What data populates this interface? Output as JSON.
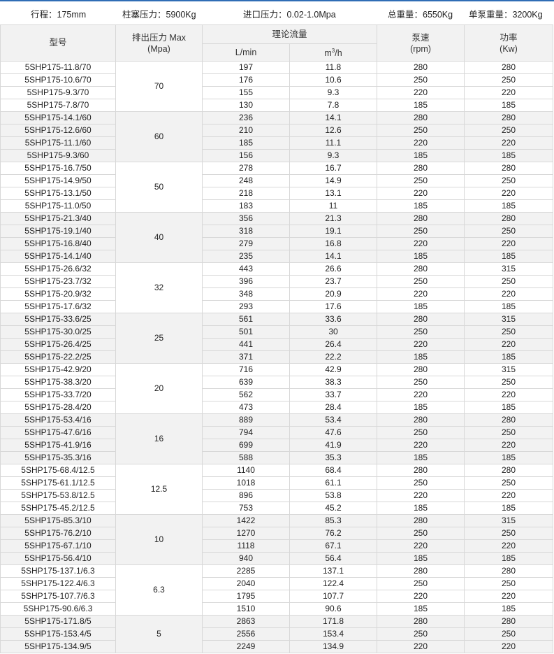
{
  "info": {
    "stroke": "行程：175mm",
    "plunger_force": "柱塞压力：5900Kg",
    "inlet_pressure": "进口压力：0.02-1.0Mpa",
    "total_weight": "总重量：6550Kg",
    "pump_weight": "单泵重量：3200Kg"
  },
  "header": {
    "model": "型号",
    "pressure": "排出压力 Max",
    "pressure_unit": "(Mpa)",
    "flow": "理论流量",
    "lmin": "L/min",
    "m3h_m": "m",
    "m3h_sup": "3",
    "m3h_h": "/h",
    "speed": "泵速",
    "speed_unit": "(rpm)",
    "power": "功率",
    "power_unit": "(Kw)"
  },
  "groups": [
    {
      "pressure": "70",
      "rows": [
        [
          "5SHP175-11.8/70",
          "197",
          "11.8",
          "280",
          "280"
        ],
        [
          "5SHP175-10.6/70",
          "176",
          "10.6",
          "250",
          "250"
        ],
        [
          "5SHP175-9.3/70",
          "155",
          "9.3",
          "220",
          "220"
        ],
        [
          "5SHP175-7.8/70",
          "130",
          "7.8",
          "185",
          "185"
        ]
      ]
    },
    {
      "pressure": "60",
      "rows": [
        [
          "5SHP175-14.1/60",
          "236",
          "14.1",
          "280",
          "280"
        ],
        [
          "5SHP175-12.6/60",
          "210",
          "12.6",
          "250",
          "250"
        ],
        [
          "5SHP175-11.1/60",
          "185",
          "11.1",
          "220",
          "220"
        ],
        [
          "5SHP175-9.3/60",
          "156",
          "9.3",
          "185",
          "185"
        ]
      ]
    },
    {
      "pressure": "50",
      "rows": [
        [
          "5SHP175-16.7/50",
          "278",
          "16.7",
          "280",
          "280"
        ],
        [
          "5SHP175-14.9/50",
          "248",
          "14.9",
          "250",
          "250"
        ],
        [
          "5SHP175-13.1/50",
          "218",
          "13.1",
          "220",
          "220"
        ],
        [
          "5SHP175-11.0/50",
          "183",
          "11",
          "185",
          "185"
        ]
      ]
    },
    {
      "pressure": "40",
      "rows": [
        [
          "5SHP175-21.3/40",
          "356",
          "21.3",
          "280",
          "280"
        ],
        [
          "5SHP175-19.1/40",
          "318",
          "19.1",
          "250",
          "250"
        ],
        [
          "5SHP175-16.8/40",
          "279",
          "16.8",
          "220",
          "220"
        ],
        [
          "5SHP175-14.1/40",
          "235",
          "14.1",
          "185",
          "185"
        ]
      ]
    },
    {
      "pressure": "32",
      "rows": [
        [
          "5SHP175-26.6/32",
          "443",
          "26.6",
          "280",
          "315"
        ],
        [
          "5SHP175-23.7/32",
          "396",
          "23.7",
          "250",
          "250"
        ],
        [
          "5SHP175-20.9/32",
          "348",
          "20.9",
          "220",
          "220"
        ],
        [
          "5SHP175-17.6/32",
          "293",
          "17.6",
          "185",
          "185"
        ]
      ]
    },
    {
      "pressure": "25",
      "rows": [
        [
          "5SHP175-33.6/25",
          "561",
          "33.6",
          "280",
          "315"
        ],
        [
          "5SHP175-30.0/25",
          "501",
          "30",
          "250",
          "250"
        ],
        [
          "5SHP175-26.4/25",
          "441",
          "26.4",
          "220",
          "220"
        ],
        [
          "5SHP175-22.2/25",
          "371",
          "22.2",
          "185",
          "185"
        ]
      ]
    },
    {
      "pressure": "20",
      "rows": [
        [
          "5SHP175-42.9/20",
          "716",
          "42.9",
          "280",
          "315"
        ],
        [
          "5SHP175-38.3/20",
          "639",
          "38.3",
          "250",
          "250"
        ],
        [
          "5SHP175-33.7/20",
          "562",
          "33.7",
          "220",
          "220"
        ],
        [
          "5SHP175-28.4/20",
          "473",
          "28.4",
          "185",
          "185"
        ]
      ]
    },
    {
      "pressure": "16",
      "rows": [
        [
          "5SHP175-53.4/16",
          "889",
          "53.4",
          "280",
          "280"
        ],
        [
          "5SHP175-47.6/16",
          "794",
          "47.6",
          "250",
          "250"
        ],
        [
          "5SHP175-41.9/16",
          "699",
          "41.9",
          "220",
          "220"
        ],
        [
          "5SHP175-35.3/16",
          "588",
          "35.3",
          "185",
          "185"
        ]
      ]
    },
    {
      "pressure": "12.5",
      "rows": [
        [
          "5SHP175-68.4/12.5",
          "1140",
          "68.4",
          "280",
          "280"
        ],
        [
          "5SHP175-61.1/12.5",
          "1018",
          "61.1",
          "250",
          "250"
        ],
        [
          "5SHP175-53.8/12.5",
          "896",
          "53.8",
          "220",
          "220"
        ],
        [
          "5SHP175-45.2/12.5",
          "753",
          "45.2",
          "185",
          "185"
        ]
      ]
    },
    {
      "pressure": "10",
      "rows": [
        [
          "5SHP175-85.3/10",
          "1422",
          "85.3",
          "280",
          "315"
        ],
        [
          "5SHP175-76.2/10",
          "1270",
          "76.2",
          "250",
          "250"
        ],
        [
          "5SHP175-67.1/10",
          "1118",
          "67.1",
          "220",
          "220"
        ],
        [
          "5SHP175-56.4/10",
          "940",
          "56.4",
          "185",
          "185"
        ]
      ]
    },
    {
      "pressure": "6.3",
      "rows": [
        [
          "5SHP175-137.1/6.3",
          "2285",
          "137.1",
          "280",
          "280"
        ],
        [
          "5SHP175-122.4/6.3",
          "2040",
          "122.4",
          "250",
          "250"
        ],
        [
          "5SHP175-107.7/6.3",
          "1795",
          "107.7",
          "220",
          "220"
        ],
        [
          "5SHP175-90.6/6.3",
          "1510",
          "90.6",
          "185",
          "185"
        ]
      ]
    },
    {
      "pressure": "5",
      "rows": [
        [
          "5SHP175-171.8/5",
          "2863",
          "171.8",
          "280",
          "280"
        ],
        [
          "5SHP175-153.4/5",
          "2556",
          "153.4",
          "250",
          "250"
        ],
        [
          "5SHP175-134.9/5",
          "2249",
          "134.9",
          "220",
          "220"
        ]
      ]
    }
  ]
}
